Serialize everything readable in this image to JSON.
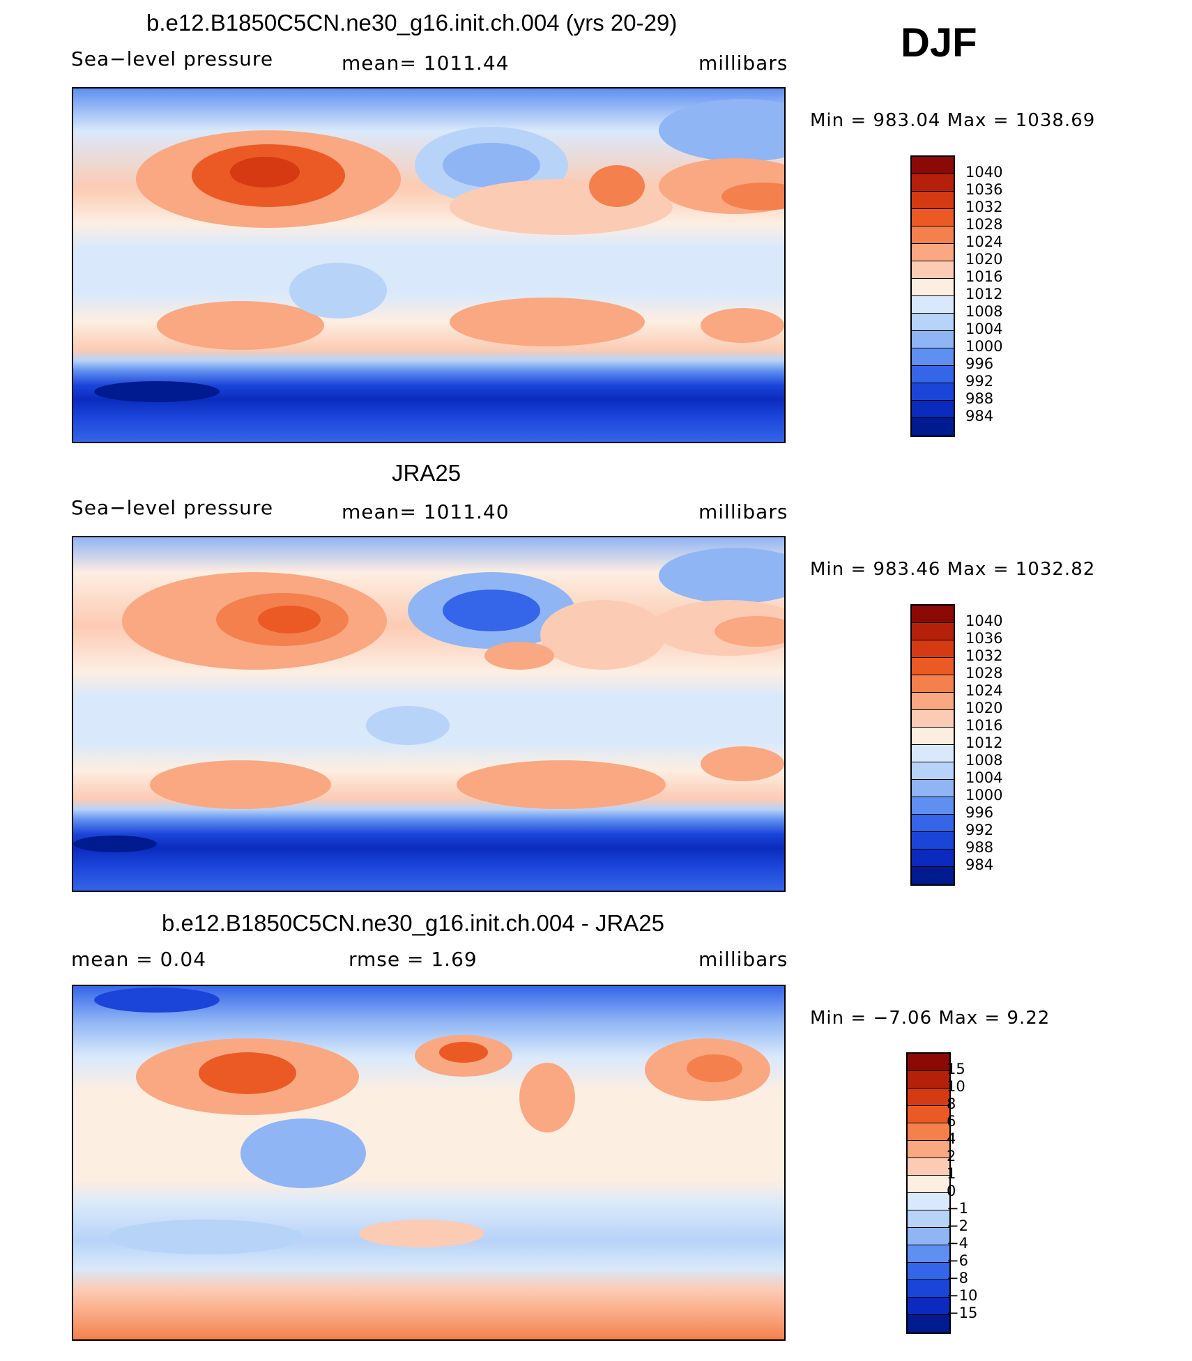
{
  "season": "DJF",
  "panels": [
    {
      "title": "b.e12.B1850C5CN.ne30_g16.init.ch.004 (yrs 20-29)",
      "left_label": "Sea−level pressure",
      "mid_label": "mean=  1011.44",
      "right_label": "millibars",
      "stats": "Min  =  983.04  Max  =  1038.69",
      "colorbar_labels": [
        "1040",
        "1036",
        "1032",
        "1028",
        "1024",
        "1020",
        "1016",
        "1012",
        "1008",
        "1004",
        "1000",
        "996",
        "992",
        "988",
        "984"
      ]
    },
    {
      "title": "JRA25",
      "left_label": "Sea−level pressure",
      "mid_label": "mean=  1011.40",
      "right_label": "millibars",
      "stats": "Min  =  983.46  Max  =  1032.82",
      "colorbar_labels": [
        "1040",
        "1036",
        "1032",
        "1028",
        "1024",
        "1020",
        "1016",
        "1012",
        "1008",
        "1004",
        "1000",
        "996",
        "992",
        "988",
        "984"
      ]
    },
    {
      "title": "b.e12.B1850C5CN.ne30_g16.init.ch.004 - JRA25",
      "left_label": "mean  =      0.04",
      "mid_label": "rmse  =      1.69",
      "right_label": "millibars",
      "stats": "Min  =     −7.06  Max  =      9.22",
      "colorbar_labels": [
        "15",
        "10",
        "8",
        "6",
        "4",
        "2",
        "1",
        "0",
        "−1",
        "−2",
        "−4",
        "−6",
        "−8",
        "−10",
        "−15"
      ]
    }
  ],
  "colorbar_colors": [
    "#8b0a06",
    "#b5200b",
    "#d63a12",
    "#eb5a25",
    "#f4804d",
    "#f9a882",
    "#fccbb3",
    "#fdeee2",
    "#d9e9fb",
    "#b8d3f8",
    "#8fb5f5",
    "#5f8ff0",
    "#3565e8",
    "#1b45d9",
    "#0a2bbd",
    "#001a8f"
  ]
}
